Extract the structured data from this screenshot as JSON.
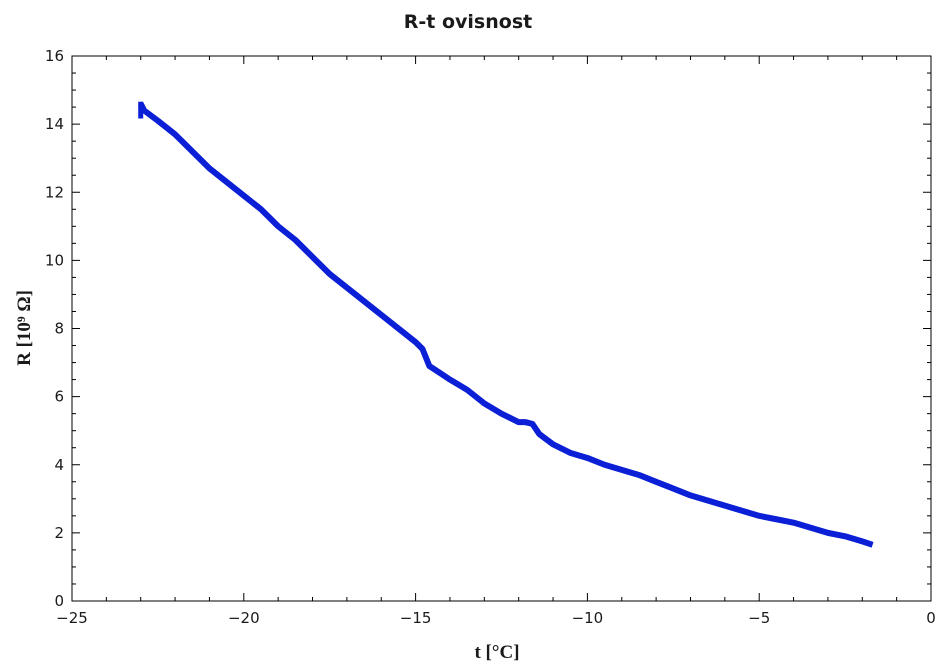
{
  "chart_data": {
    "type": "line",
    "title": "R-t ovisnost",
    "xlabel": "t [°C]",
    "ylabel": "R [10⁹ Ω]",
    "xlim": [
      -25,
      0
    ],
    "ylim": [
      0,
      16
    ],
    "xticks": [
      -25,
      -20,
      -15,
      -10,
      -5,
      0
    ],
    "yticks": [
      0,
      2,
      4,
      6,
      8,
      10,
      12,
      14,
      16
    ],
    "xtick_labels": [
      "−25",
      "−20",
      "−15",
      "−10",
      "−5",
      "0"
    ],
    "ytick_labels": [
      "0",
      "2",
      "4",
      "6",
      "8",
      "10",
      "12",
      "14",
      "16"
    ],
    "grid": false,
    "series": [
      {
        "color": "#0a1fd6",
        "x": [
          -23.0,
          -22.9,
          -22.5,
          -22.0,
          -21.5,
          -21.0,
          -20.5,
          -20.0,
          -19.5,
          -19.0,
          -18.5,
          -18.0,
          -17.5,
          -17.0,
          -16.5,
          -16.0,
          -15.5,
          -15.0,
          -14.8,
          -14.6,
          -14.3,
          -14.0,
          -13.5,
          -13.0,
          -12.5,
          -12.0,
          -11.8,
          -11.6,
          -11.4,
          -11.0,
          -10.5,
          -10.0,
          -9.5,
          -9.0,
          -8.5,
          -8.0,
          -7.5,
          -7.0,
          -6.5,
          -6.0,
          -5.5,
          -5.0,
          -4.5,
          -4.0,
          -3.5,
          -3.0,
          -2.5,
          -2.0,
          -1.7
        ],
        "y": [
          14.6,
          14.4,
          14.1,
          13.7,
          13.2,
          12.7,
          12.3,
          11.9,
          11.5,
          11.0,
          10.6,
          10.1,
          9.6,
          9.2,
          8.8,
          8.4,
          8.0,
          7.6,
          7.4,
          6.9,
          6.7,
          6.5,
          6.2,
          5.8,
          5.5,
          5.25,
          5.25,
          5.2,
          4.9,
          4.6,
          4.35,
          4.2,
          4.0,
          3.85,
          3.7,
          3.5,
          3.3,
          3.1,
          2.95,
          2.8,
          2.65,
          2.5,
          2.4,
          2.3,
          2.15,
          2.0,
          1.9,
          1.75,
          1.65
        ]
      }
    ]
  }
}
